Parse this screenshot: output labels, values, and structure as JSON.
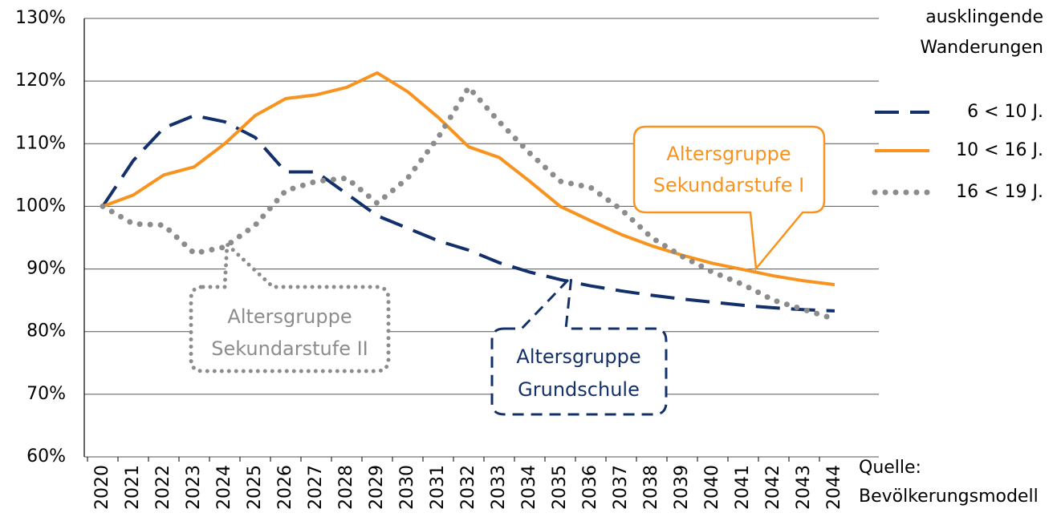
{
  "chart_data": {
    "type": "line",
    "x": [
      2020,
      2021,
      2022,
      2023,
      2024,
      2025,
      2026,
      2027,
      2028,
      2029,
      2030,
      2031,
      2032,
      2033,
      2034,
      2035,
      2036,
      2037,
      2038,
      2039,
      2040,
      2041,
      2042,
      2043,
      2044
    ],
    "xticks": [
      2020,
      2021,
      2022,
      2023,
      2024,
      2025,
      2026,
      2027,
      2028,
      2029,
      2030,
      2031,
      2032,
      2033,
      2034,
      2035,
      2036,
      2037,
      2038,
      2039,
      2040,
      2041,
      2042,
      2043,
      2044
    ],
    "ylim": [
      60,
      130
    ],
    "yticks": [
      {
        "value": 60,
        "label": "60%"
      },
      {
        "value": 70,
        "label": "70%"
      },
      {
        "value": 80,
        "label": "80%"
      },
      {
        "value": 90,
        "label": "90%"
      },
      {
        "value": 100,
        "label": "100%"
      },
      {
        "value": 110,
        "label": "110%"
      },
      {
        "value": 120,
        "label": "120%"
      },
      {
        "value": 130,
        "label": "130%"
      }
    ],
    "grid": true,
    "legend_title": [
      "ausklingende",
      "Wanderungen"
    ],
    "series": [
      {
        "name": "6 < 10 J.",
        "color": "#13306a",
        "style": "dashed",
        "values": [
          100,
          107.3,
          112.5,
          114.5,
          113.5,
          111,
          105.5,
          105.5,
          102,
          98.5,
          96.5,
          94.5,
          93,
          91,
          89.5,
          88.3,
          87.3,
          86.5,
          85.8,
          85.2,
          84.7,
          84.2,
          83.8,
          83.5,
          83.3
        ]
      },
      {
        "name": "10 < 16 J.",
        "color": "#f7931e",
        "style": "solid",
        "values": [
          100,
          101.8,
          105,
          106.3,
          110,
          114.5,
          117.2,
          117.8,
          119,
          121.3,
          118.3,
          114.2,
          109.5,
          107.8,
          104,
          100,
          97.7,
          95.5,
          93.7,
          92.2,
          90.9,
          89.9,
          88.9,
          88.1,
          87.5
        ]
      },
      {
        "name": "16 < 19 J.",
        "color": "#8c8c8c",
        "style": "dotted",
        "values": [
          100,
          97.2,
          97,
          92.5,
          93.5,
          97,
          102.5,
          104,
          104.5,
          100.5,
          104.5,
          111,
          119,
          113.5,
          108.5,
          104,
          103,
          99.5,
          95,
          92,
          89.5,
          87.5,
          85,
          83.5,
          82
        ]
      }
    ],
    "annotations": [
      [
        "Altersgruppe",
        "Sekundarstufe I"
      ],
      [
        "Altersgruppe",
        "Sekundarstufe II"
      ],
      [
        "Altersgruppe",
        "Grundschule"
      ]
    ],
    "source": [
      "Quelle:",
      "Bevölkerungsmodell"
    ]
  }
}
